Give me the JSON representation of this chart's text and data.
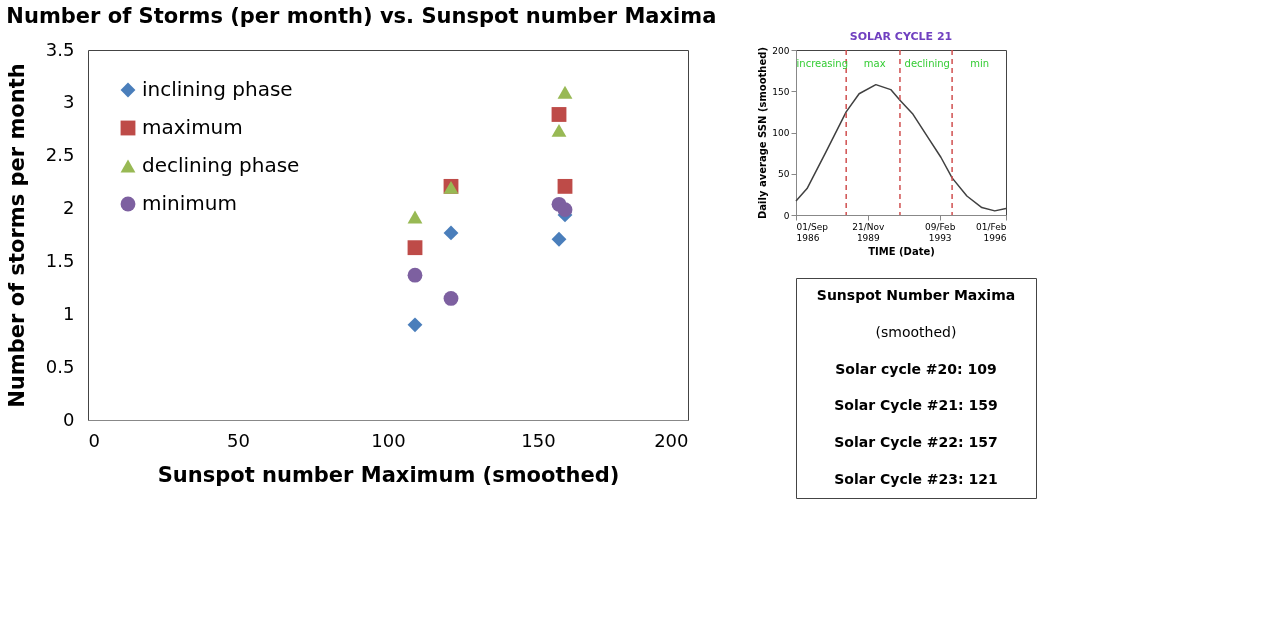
{
  "chart_data": [
    {
      "type": "scatter",
      "title": "Number of Storms (per month) vs. Sunspot number Maxima",
      "xlabel": "Sunspot number Maximum (smoothed)",
      "ylabel": "Number of storms per month",
      "xlim": [
        0,
        200
      ],
      "xticks": [
        0,
        50,
        100,
        150,
        200
      ],
      "ylim": [
        0,
        3.5
      ],
      "yticks": [
        0,
        0.5,
        1,
        1.5,
        2,
        2.5,
        3,
        3.5
      ],
      "grid": false,
      "legend": "top left",
      "series": [
        {
          "name": "inclining phase",
          "color": "#4a7ebb",
          "marker": "diamond",
          "x": [
            109,
            121,
            157,
            159
          ],
          "values": [
            0.9,
            1.77,
            1.71,
            1.94
          ]
        },
        {
          "name": "maximum",
          "color": "#be4b48",
          "marker": "square",
          "x": [
            109,
            121,
            157,
            159
          ],
          "values": [
            1.63,
            2.21,
            2.89,
            2.21
          ]
        },
        {
          "name": "declining phase",
          "color": "#98b954",
          "marker": "triangle",
          "x": [
            109,
            121,
            157,
            159
          ],
          "values": [
            1.92,
            2.2,
            2.74,
            3.1
          ]
        },
        {
          "name": "minimum",
          "color": "#7d60a0",
          "marker": "circle",
          "x": [
            109,
            121,
            157,
            159
          ],
          "values": [
            1.37,
            1.15,
            2.04,
            1.99
          ]
        }
      ]
    },
    {
      "type": "line",
      "title": "SOLAR CYCLE 21",
      "xlabel": "TIME (Date)",
      "ylabel": "Daily average SSN (smoothed)",
      "xlim": [
        "1986-09-01",
        "1996-02-01"
      ],
      "xticks": [
        {
          "value": "1986-09-01",
          "label": "01/Sep 1986"
        },
        {
          "value": "1989-11-21",
          "label": "21/Nov 1989"
        },
        {
          "value": "1993-02-09",
          "label": "09/Feb 1993"
        },
        {
          "value": "1996-02-01",
          "label": "01/Feb 1996"
        }
      ],
      "ylim": [
        0,
        200
      ],
      "yticks": [
        0,
        50,
        100,
        150,
        200
      ],
      "grid": false,
      "marker": "none",
      "line_style": "solid",
      "x": [
        "1986-09",
        "1987-03",
        "1988-01",
        "1988-12",
        "1989-07",
        "1990-04",
        "1990-12",
        "1991-05",
        "1991-12",
        "1992-08",
        "1993-03",
        "1993-09",
        "1994-05",
        "1995-01",
        "1995-08",
        "1996-02"
      ],
      "series": [
        {
          "color": "#404040",
          "values": [
            17,
            32,
            76,
            125,
            147,
            158,
            152,
            139,
            122,
            94,
            70,
            45,
            23,
            9,
            5,
            8
          ]
        }
      ],
      "ref_lines": [
        {
          "axis": "x",
          "value": "1988-12",
          "color": "#d05050",
          "line_style": "dashed"
        },
        {
          "axis": "x",
          "value": "1991-05",
          "color": "#d05050",
          "line_style": "dashed"
        },
        {
          "axis": "x",
          "value": "1993-09",
          "color": "#d05050",
          "line_style": "dashed"
        }
      ],
      "annotations": [
        "increasing",
        "max",
        "declining",
        "min"
      ]
    },
    {
      "type": "other",
      "title": "Sunspot Number Maxima",
      "subtitle": "(smoothed)",
      "annotations": [
        "Solar cycle #20: 109",
        "Solar Cycle #21: 159",
        "Solar Cycle #22: 157",
        "Solar Cycle #23: 121"
      ]
    }
  ]
}
